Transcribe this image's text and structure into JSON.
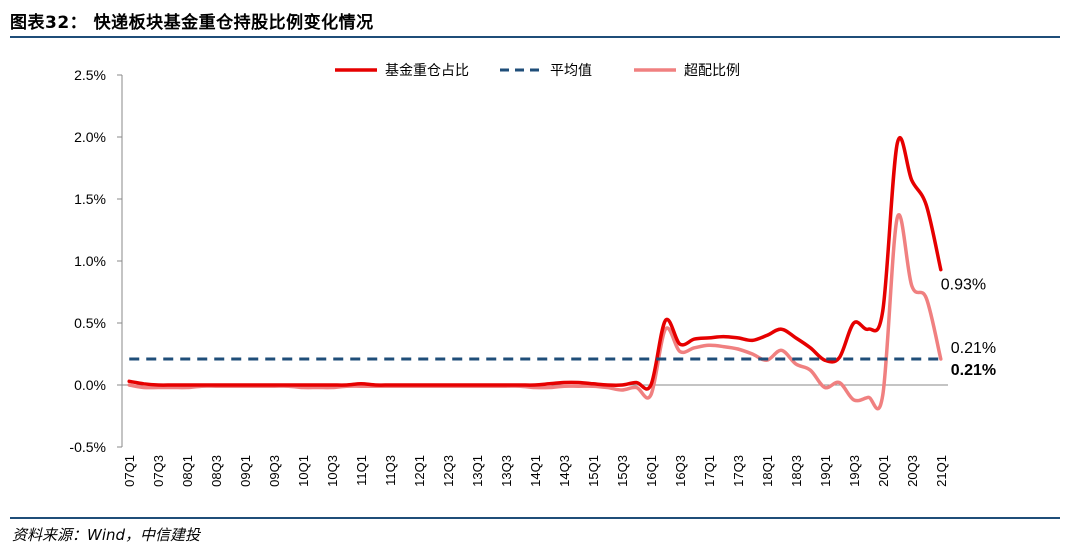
{
  "header": {
    "title": "图表32： 快递板块基金重仓持股比例变化情况"
  },
  "footer": {
    "source": "资料来源：Wind，中信建投"
  },
  "colors": {
    "holding": "#e60000",
    "average": "#1f4e79",
    "excess": "#f08080",
    "axis": "#888888",
    "rule": "#1f4e79"
  },
  "chart_data": {
    "type": "line",
    "title": "快递板块基金重仓持股比例变化情况",
    "xlabel": "",
    "ylabel": "",
    "ylim": [
      -0.5,
      2.5
    ],
    "y_ticks": [
      "2.5%",
      "2.0%",
      "1.5%",
      "1.0%",
      "0.5%",
      "0.0%",
      "-0.5%"
    ],
    "y_tick_values": [
      2.5,
      2.0,
      1.5,
      1.0,
      0.5,
      0.0,
      -0.5
    ],
    "categories": [
      "07Q1",
      "07Q2",
      "07Q3",
      "07Q4",
      "08Q1",
      "08Q2",
      "08Q3",
      "08Q4",
      "09Q1",
      "09Q2",
      "09Q3",
      "09Q4",
      "10Q1",
      "10Q2",
      "10Q3",
      "10Q4",
      "11Q1",
      "11Q2",
      "11Q3",
      "11Q4",
      "12Q1",
      "12Q2",
      "12Q3",
      "12Q4",
      "13Q1",
      "13Q2",
      "13Q3",
      "13Q4",
      "14Q1",
      "14Q2",
      "14Q3",
      "14Q4",
      "15Q1",
      "15Q2",
      "15Q3",
      "15Q4",
      "16Q1",
      "16Q2",
      "16Q3",
      "16Q4",
      "17Q1",
      "17Q2",
      "17Q3",
      "17Q4",
      "18Q1",
      "18Q2",
      "18Q3",
      "18Q4",
      "19Q1",
      "19Q2",
      "19Q3",
      "19Q4",
      "20Q1",
      "20Q2",
      "20Q3",
      "20Q4",
      "21Q1"
    ],
    "x_tick_labels": [
      "07Q1",
      "07Q3",
      "08Q1",
      "08Q3",
      "09Q1",
      "09Q3",
      "10Q1",
      "10Q3",
      "11Q1",
      "11Q3",
      "12Q1",
      "12Q3",
      "13Q1",
      "13Q3",
      "14Q1",
      "14Q3",
      "15Q1",
      "15Q3",
      "16Q1",
      "16Q3",
      "17Q1",
      "17Q3",
      "18Q1",
      "18Q3",
      "19Q1",
      "19Q3",
      "20Q1",
      "20Q3",
      "21Q1"
    ],
    "legend_position": "top-center",
    "series": [
      {
        "name": "基金重仓占比",
        "style": "solid",
        "values": [
          0.03,
          0.01,
          0.0,
          0.0,
          0.0,
          0.0,
          0.0,
          0.0,
          0.0,
          0.0,
          0.0,
          0.0,
          0.0,
          0.0,
          0.0,
          0.0,
          0.01,
          0.0,
          0.0,
          0.0,
          0.0,
          0.0,
          0.0,
          0.0,
          0.0,
          0.0,
          0.0,
          0.0,
          0.0,
          0.01,
          0.02,
          0.02,
          0.01,
          0.0,
          0.0,
          0.02,
          0.0,
          0.52,
          0.33,
          0.37,
          0.38,
          0.39,
          0.38,
          0.36,
          0.4,
          0.45,
          0.38,
          0.3,
          0.2,
          0.22,
          0.5,
          0.45,
          0.6,
          1.95,
          1.65,
          1.45,
          0.93
        ]
      },
      {
        "name": "平均值",
        "style": "dashed",
        "values": [
          0.21,
          0.21,
          0.21,
          0.21,
          0.21,
          0.21,
          0.21,
          0.21,
          0.21,
          0.21,
          0.21,
          0.21,
          0.21,
          0.21,
          0.21,
          0.21,
          0.21,
          0.21,
          0.21,
          0.21,
          0.21,
          0.21,
          0.21,
          0.21,
          0.21,
          0.21,
          0.21,
          0.21,
          0.21,
          0.21,
          0.21,
          0.21,
          0.21,
          0.21,
          0.21,
          0.21,
          0.21,
          0.21,
          0.21,
          0.21,
          0.21,
          0.21,
          0.21,
          0.21,
          0.21,
          0.21,
          0.21,
          0.21,
          0.21,
          0.21,
          0.21,
          0.21,
          0.21,
          0.21,
          0.21,
          0.21,
          0.21
        ]
      },
      {
        "name": "超配比例",
        "style": "solid",
        "values": [
          0.0,
          -0.02,
          -0.02,
          -0.02,
          -0.02,
          -0.01,
          -0.01,
          -0.01,
          -0.01,
          -0.01,
          -0.01,
          -0.01,
          -0.02,
          -0.02,
          -0.02,
          -0.01,
          -0.01,
          -0.01,
          -0.01,
          -0.01,
          -0.01,
          -0.01,
          -0.01,
          -0.01,
          -0.01,
          -0.01,
          -0.01,
          -0.01,
          -0.02,
          -0.02,
          -0.01,
          -0.01,
          -0.01,
          -0.02,
          -0.04,
          -0.02,
          -0.08,
          0.45,
          0.27,
          0.3,
          0.32,
          0.31,
          0.29,
          0.25,
          0.2,
          0.28,
          0.17,
          0.12,
          -0.02,
          0.02,
          -0.12,
          -0.1,
          -0.08,
          1.35,
          0.8,
          0.7,
          0.21
        ]
      }
    ],
    "annotations": [
      {
        "text": "0.93%",
        "series": "基金重仓占比",
        "bold": false
      },
      {
        "text": "0.21%",
        "series": "超配比例",
        "bold": false
      },
      {
        "text": "0.21%",
        "series": "平均值",
        "bold": true
      }
    ]
  }
}
